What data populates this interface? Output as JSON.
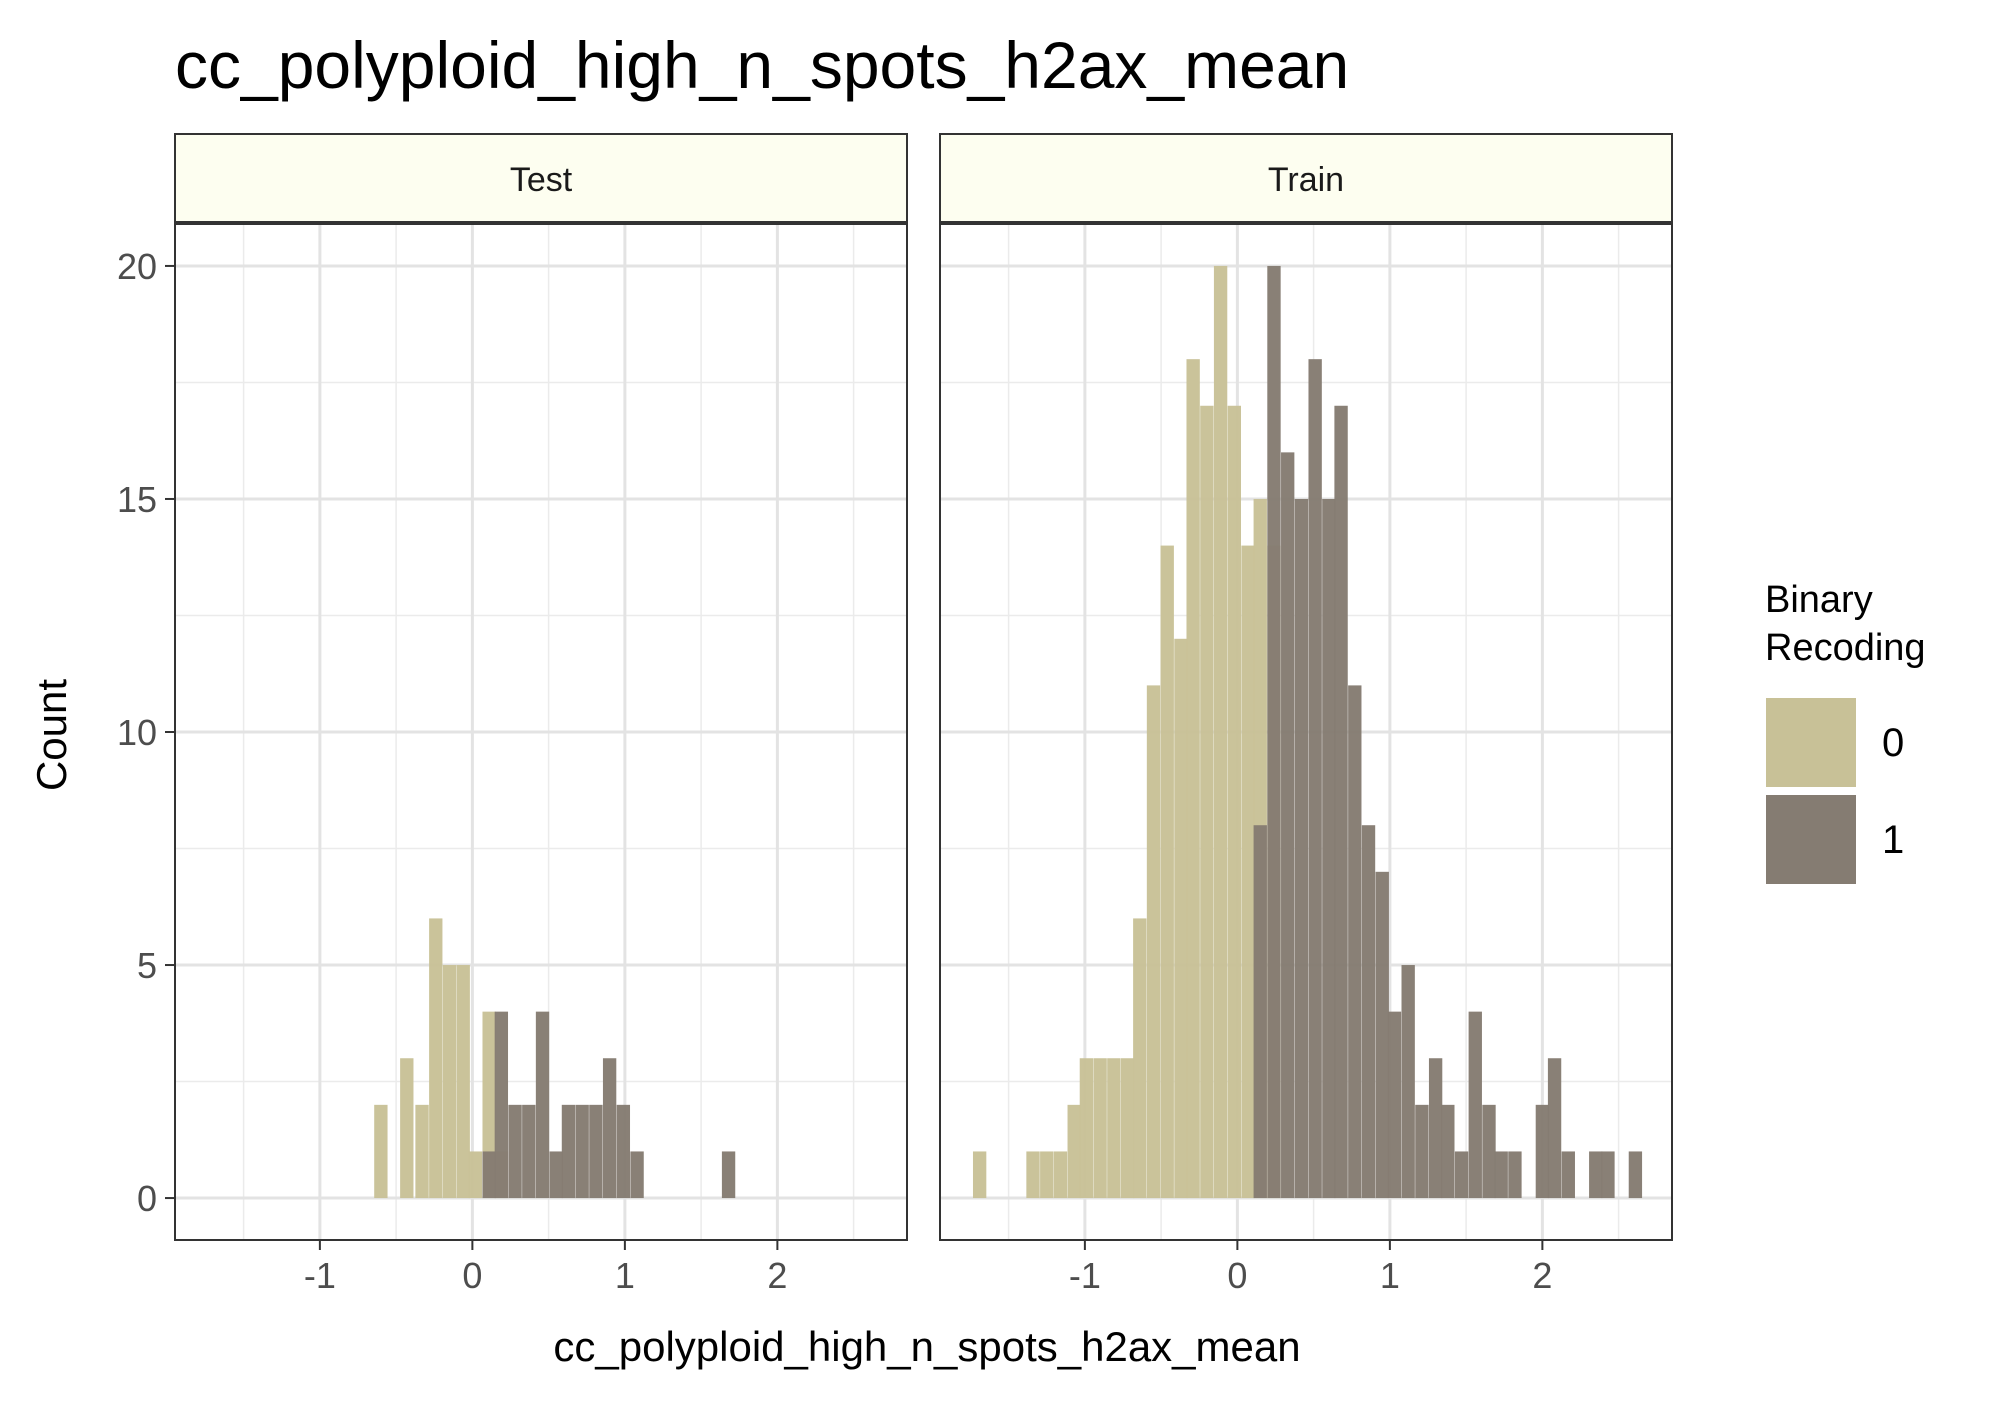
{
  "chart_data": {
    "type": "bar",
    "title": "cc_polyploid_high_n_spots_h2ax_mean",
    "xlabel": "cc_polyploid_high_n_spots_h2ax_mean",
    "ylabel": "Count",
    "xlim": [
      -1.95,
      2.85
    ],
    "ylim": [
      -0.9,
      20.9
    ],
    "x_ticks": [
      -1,
      0,
      1,
      2
    ],
    "x_tick_labels": [
      "-1",
      "0",
      "1",
      "2"
    ],
    "y_ticks": [
      0,
      5,
      10,
      15,
      20
    ],
    "y_tick_labels": [
      "0",
      "5",
      "10",
      "15",
      "20"
    ],
    "grid": true,
    "legend_position": "right",
    "legend": {
      "title_lines": [
        "Binary",
        "Recoding"
      ],
      "items": [
        {
          "label": "0",
          "color": "#c8c197"
        },
        {
          "label": "1",
          "color": "#857c72"
        }
      ]
    },
    "colors": {
      "0": "#c8c197",
      "1": "#857c72",
      "strip_fill": "#fdfef0"
    },
    "bin_width": 0.0875,
    "facets": [
      {
        "label": "Test",
        "series": [
          {
            "name": "0",
            "bins": [
              {
                "x": -0.6,
                "count": 2
              },
              {
                "x": -0.43,
                "count": 3
              },
              {
                "x": -0.33,
                "count": 2
              },
              {
                "x": -0.24,
                "count": 6
              },
              {
                "x": -0.15,
                "count": 5
              },
              {
                "x": -0.06,
                "count": 5
              },
              {
                "x": 0.02,
                "count": 1
              },
              {
                "x": 0.11,
                "count": 4
              },
              {
                "x": 0.19,
                "count": 1
              }
            ]
          },
          {
            "name": "1",
            "bins": [
              {
                "x": 0.11,
                "count": 1
              },
              {
                "x": 0.19,
                "count": 4
              },
              {
                "x": 0.28,
                "count": 2
              },
              {
                "x": 0.37,
                "count": 2
              },
              {
                "x": 0.46,
                "count": 4
              },
              {
                "x": 0.55,
                "count": 1
              },
              {
                "x": 0.63,
                "count": 2
              },
              {
                "x": 0.72,
                "count": 2
              },
              {
                "x": 0.81,
                "count": 2
              },
              {
                "x": 0.9,
                "count": 3
              },
              {
                "x": 0.99,
                "count": 2
              },
              {
                "x": 1.08,
                "count": 1
              },
              {
                "x": 1.68,
                "count": 1
              }
            ]
          }
        ]
      },
      {
        "label": "Train",
        "series": [
          {
            "name": "0",
            "bins": [
              {
                "x": -1.69,
                "count": 1
              },
              {
                "x": -1.34,
                "count": 1
              },
              {
                "x": -1.25,
                "count": 1
              },
              {
                "x": -1.16,
                "count": 1
              },
              {
                "x": -1.07,
                "count": 2
              },
              {
                "x": -0.99,
                "count": 3
              },
              {
                "x": -0.9,
                "count": 3
              },
              {
                "x": -0.81,
                "count": 3
              },
              {
                "x": -0.72,
                "count": 3
              },
              {
                "x": -0.64,
                "count": 6
              },
              {
                "x": -0.55,
                "count": 11
              },
              {
                "x": -0.46,
                "count": 14
              },
              {
                "x": -0.37,
                "count": 12
              },
              {
                "x": -0.29,
                "count": 18
              },
              {
                "x": -0.2,
                "count": 17
              },
              {
                "x": -0.11,
                "count": 20
              },
              {
                "x": -0.02,
                "count": 17
              },
              {
                "x": 0.07,
                "count": 14
              },
              {
                "x": 0.15,
                "count": 15
              },
              {
                "x": 0.24,
                "count": 14
              }
            ]
          },
          {
            "name": "1",
            "bins": [
              {
                "x": 0.15,
                "count": 8
              },
              {
                "x": 0.24,
                "count": 20
              },
              {
                "x": 0.33,
                "count": 16
              },
              {
                "x": 0.42,
                "count": 15
              },
              {
                "x": 0.51,
                "count": 18
              },
              {
                "x": 0.6,
                "count": 15
              },
              {
                "x": 0.68,
                "count": 17
              },
              {
                "x": 0.77,
                "count": 11
              },
              {
                "x": 0.86,
                "count": 8
              },
              {
                "x": 0.95,
                "count": 7
              },
              {
                "x": 1.03,
                "count": 4
              },
              {
                "x": 1.12,
                "count": 5
              },
              {
                "x": 1.21,
                "count": 2
              },
              {
                "x": 1.3,
                "count": 3
              },
              {
                "x": 1.38,
                "count": 2
              },
              {
                "x": 1.47,
                "count": 1
              },
              {
                "x": 1.56,
                "count": 4
              },
              {
                "x": 1.65,
                "count": 2
              },
              {
                "x": 1.73,
                "count": 1
              },
              {
                "x": 1.82,
                "count": 1
              },
              {
                "x": 1.91,
                "count": 0
              },
              {
                "x": 2.0,
                "count": 2
              },
              {
                "x": 2.08,
                "count": 3
              },
              {
                "x": 2.17,
                "count": 1
              },
              {
                "x": 2.26,
                "count": 0
              },
              {
                "x": 2.35,
                "count": 1
              },
              {
                "x": 2.43,
                "count": 1
              },
              {
                "x": 2.61,
                "count": 1
              }
            ]
          }
        ]
      }
    ]
  }
}
